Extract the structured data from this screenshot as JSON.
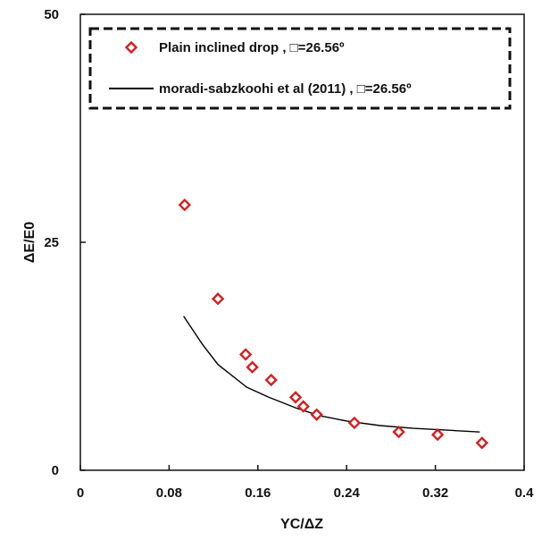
{
  "chart_data": {
    "type": "scatter",
    "xlabel": "YC/ΔZ",
    "ylabel": "ΔE/E0",
    "xlim": [
      0,
      0.4
    ],
    "ylim": [
      0,
      50
    ],
    "xticks": [
      0,
      0.08,
      0.16,
      0.24,
      0.32,
      0.4
    ],
    "xtick_labels": [
      "0",
      "0.08",
      "0.16",
      "0.24",
      "0.32",
      "0.4"
    ],
    "yticks": [
      0,
      25,
      50
    ],
    "ytick_labels": [
      "0",
      "25",
      "50"
    ],
    "grid": false,
    "legend_position": "top",
    "series": [
      {
        "name": "Plain inclined drop , □=26.56º",
        "type": "scatter",
        "marker": "diamond",
        "color": "#d42020",
        "x": [
          0.094,
          0.124,
          0.149,
          0.155,
          0.172,
          0.194,
          0.201,
          0.213,
          0.247,
          0.287,
          0.322,
          0.362
        ],
        "y": [
          29.1,
          18.8,
          12.7,
          11.3,
          9.9,
          8.0,
          7.0,
          6.1,
          5.2,
          4.2,
          3.9,
          3.0
        ]
      },
      {
        "name": "moradi-sabzkoohi et al (2011) , □=26.56º",
        "type": "line",
        "color": "#000000",
        "x": [
          0.093,
          0.11,
          0.124,
          0.15,
          0.17,
          0.195,
          0.215,
          0.24,
          0.27,
          0.3,
          0.33,
          0.36
        ],
        "y": [
          16.9,
          13.8,
          11.6,
          9.1,
          8.0,
          6.8,
          6.0,
          5.4,
          4.9,
          4.6,
          4.4,
          4.2
        ]
      }
    ]
  }
}
